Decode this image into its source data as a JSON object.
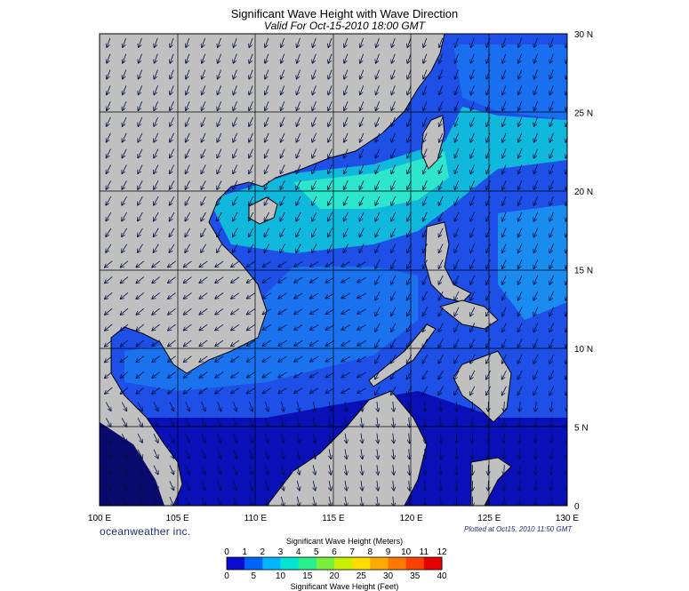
{
  "header": {
    "title": "Significant Wave Height with Wave Direction",
    "subtitle": "Valid For Oct-15-2010 18:00 GMT"
  },
  "map": {
    "lon_range": [
      100,
      130
    ],
    "lat_range": [
      0,
      30
    ],
    "lon_labels": [
      "100 E",
      "105 E",
      "110 E",
      "115 E",
      "120 E",
      "125 E",
      "130 E"
    ],
    "lat_labels": [
      "30 N",
      "25 N",
      "20 N",
      "15 N",
      "10 N",
      "5 N",
      "0"
    ],
    "land_color": "#c0c0c0",
    "sea_colors": [
      "#0a0aa0",
      "#1f46e8",
      "#1e7ef0",
      "#13c8d8",
      "#2ef0c8"
    ]
  },
  "footer": {
    "brand": "oceanweather inc.",
    "plotted": "Plotted at Oct15, 2010 11:50 GMT"
  },
  "colorbar": {
    "title_top": "Significant Wave Height (Meters)",
    "title_bottom": "Significant Wave Height (Feet)",
    "meters": [
      "0",
      "1",
      "2",
      "3",
      "4",
      "5",
      "6",
      "7",
      "8",
      "9",
      "10",
      "11",
      "12"
    ],
    "feet": [
      "0",
      "5",
      "10",
      "15",
      "20",
      "25",
      "30",
      "35",
      "40"
    ],
    "colors": [
      "#0a0ad0",
      "#0064ff",
      "#00b4ff",
      "#00e6d2",
      "#28f08c",
      "#78f03c",
      "#c8f000",
      "#ffdc00",
      "#ffaa00",
      "#ff7800",
      "#ff4000",
      "#e60000"
    ]
  }
}
